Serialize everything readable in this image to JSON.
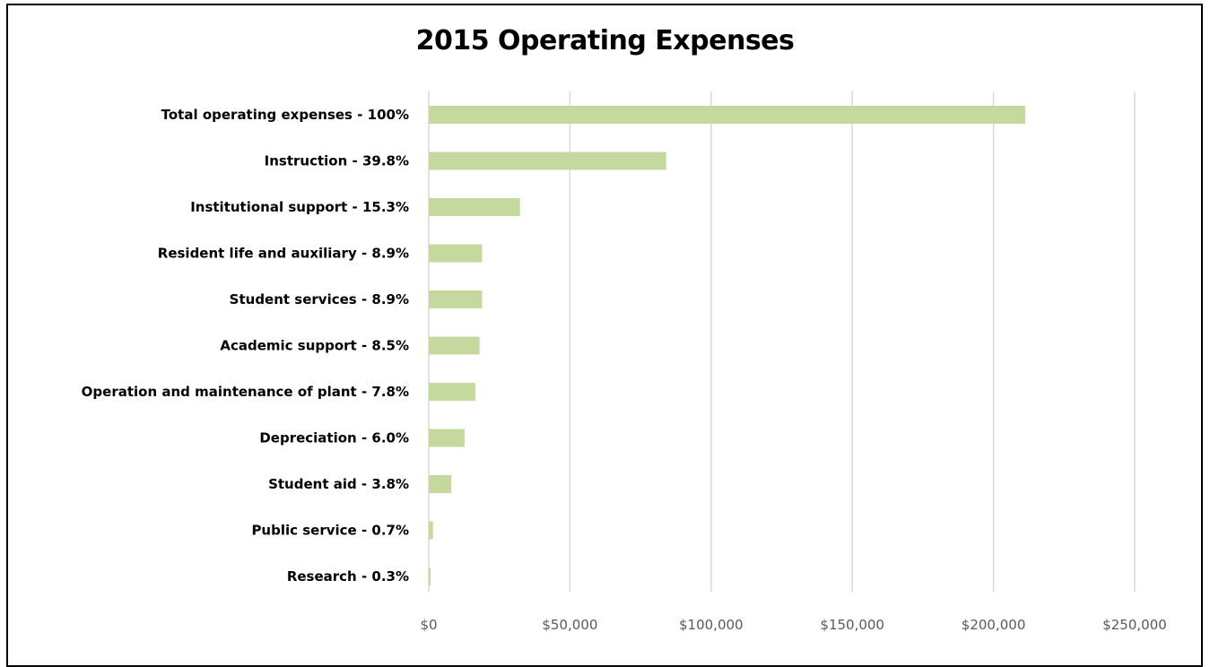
{
  "chart_data": {
    "type": "bar",
    "orientation": "horizontal",
    "title": "2015 Operating Expenses",
    "xlabel": "",
    "ylabel": "",
    "xlim": [
      0,
      250000
    ],
    "x_ticks": [
      "$0",
      "$50,000",
      "$100,000",
      "$150,000",
      "$200,000",
      "$250,000"
    ],
    "grid": "vertical",
    "legend": "none",
    "bar_color": "#C5D99F",
    "categories": [
      "Total operating expenses - 100%",
      "Instruction - 39.8%",
      "Institutional support - 15.3%",
      "Resident life and auxiliary - 8.9%",
      "Student services - 8.9%",
      "Academic support - 8.5%",
      "Operation and maintenance of plant - 7.8%",
      "Depreciation - 6.0%",
      "Student aid - 3.8%",
      "Public service - 0.7%",
      "Research - 0.3%"
    ],
    "values": [
      211300,
      84100,
      32300,
      18900,
      18900,
      18000,
      16500,
      12700,
      8000,
      1500,
      600
    ]
  }
}
